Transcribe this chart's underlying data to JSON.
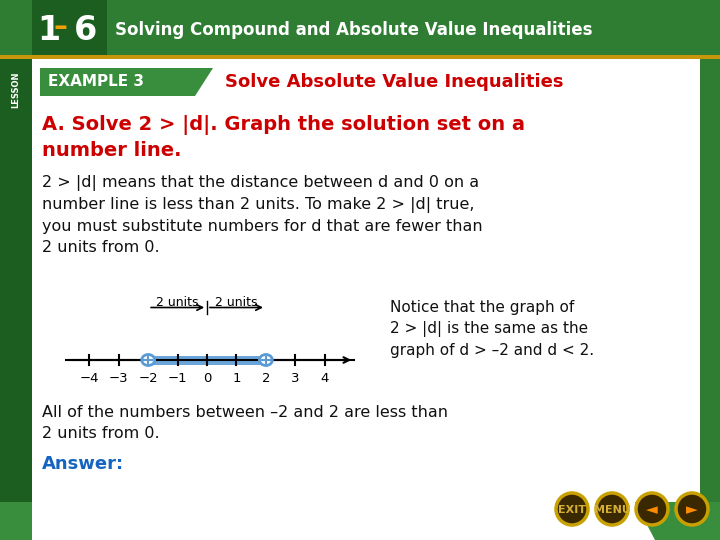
{
  "bg_color": "#ffffff",
  "header_bg": "#2e7d32",
  "header_text_color": "#ffffff",
  "header_number": "1–6",
  "header_subtitle": "Solving Compound and Absolute Value Inequalities",
  "gold_line_color": "#c8960a",
  "left_bar_color": "#1b5e20",
  "right_bar_color": "#2e7d32",
  "content_bg": "#ffffff",
  "example_label_bg": "#388e3c",
  "example_label_text": "EXAMPLE 3",
  "example_label_color": "#ffffff",
  "example_title": "Solve Absolute Value Inequalities",
  "example_title_color": "#cc0000",
  "body_A_text": "A. Solve 2 > |d|. Graph the solution set on a\nnumber line.",
  "body_A_color": "#cc0000",
  "explain_text": "2 > |d| means that the distance between d and 0 on a\nnumber line is less than 2 units. To make 2 > |d| true,\nyou must substitute numbers for d that are fewer than\n2 units from 0.",
  "explain_color": "#111111",
  "notice_text": "Notice that the graph of\n2 > |d| is the same as the\ngraph of d > –2 and d < 2.",
  "notice_color": "#111111",
  "all_text": "All of the numbers between –2 and 2 are less than\n2 units from 0.",
  "all_color": "#111111",
  "answer_text": "Answer:",
  "answer_color": "#1565c0",
  "shade_color": "#5b9bd5",
  "footer_bg": "#388e3c",
  "footer_curve_color": "#8B6914",
  "btn_ring_color": "#c8a000",
  "btn_dark_color": "#3a2800",
  "btn_exit_menu_color": "#d4af37",
  "btn_arrow_color": "#ff8c00"
}
